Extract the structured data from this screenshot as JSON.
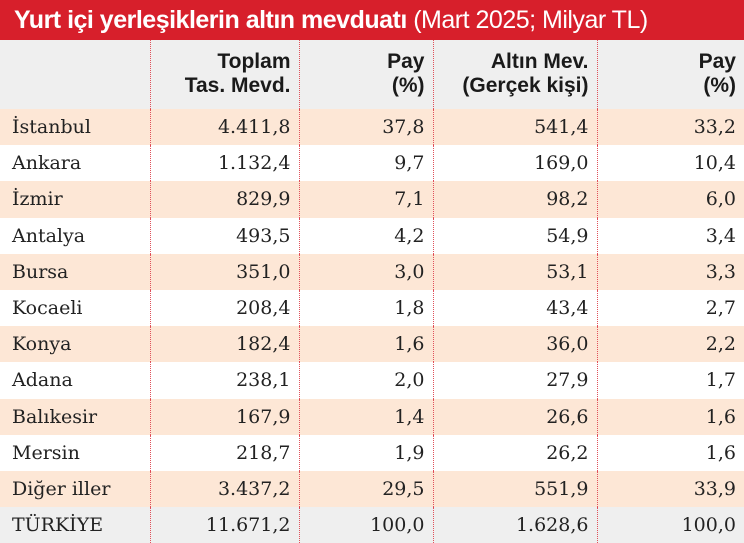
{
  "title": {
    "bold": "Yurt içi yerleşiklerin altın mevduatı",
    "sub": "(Mart 2025; Milyar TL)"
  },
  "colors": {
    "title_bg": "#d71f2b",
    "row_alt": "#fde7d6",
    "header_bg": "#efefef"
  },
  "headers": [
    {
      "line1": "",
      "line2": ""
    },
    {
      "line1": "Toplam",
      "line2": "Tas. Mevd."
    },
    {
      "line1": "Pay",
      "line2": "(%)"
    },
    {
      "line1": "Altın Mev.",
      "line2": "(Gerçek kişi)"
    },
    {
      "line1": "Pay",
      "line2": "(%)"
    }
  ],
  "rows": [
    [
      "İstanbul",
      "4.411,8",
      "37,8",
      "541,4",
      "33,2"
    ],
    [
      "Ankara",
      "1.132,4",
      "9,7",
      "169,0",
      "10,4"
    ],
    [
      "İzmir",
      "829,9",
      "7,1",
      "98,2",
      "6,0"
    ],
    [
      "Antalya",
      "493,5",
      "4,2",
      "54,9",
      "3,4"
    ],
    [
      "Bursa",
      "351,0",
      "3,0",
      "53,1",
      "3,3"
    ],
    [
      "Kocaeli",
      "208,4",
      "1,8",
      "43,4",
      "2,7"
    ],
    [
      "Konya",
      "182,4",
      "1,6",
      "36,0",
      "2,2"
    ],
    [
      "Adana",
      "238,1",
      "2,0",
      "27,9",
      "1,7"
    ],
    [
      "Balıkesir",
      "167,9",
      "1,4",
      "26,6",
      "1,6"
    ],
    [
      "Mersin",
      "218,7",
      "1,9",
      "26,2",
      "1,6"
    ],
    [
      "Diğer iller",
      "3.437,2",
      "29,5",
      "551,9",
      "33,9"
    ],
    [
      "TÜRKİYE",
      "11.671,2",
      "100,0",
      "1.628,6",
      "100,0"
    ]
  ]
}
